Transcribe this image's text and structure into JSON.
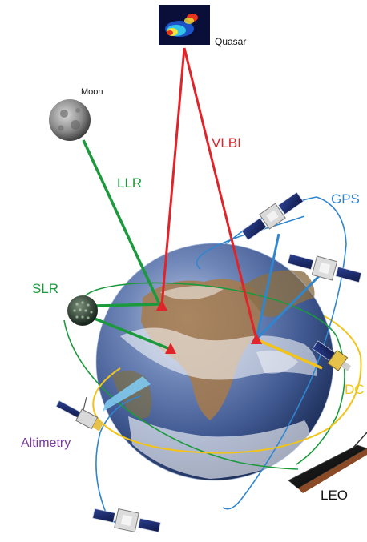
{
  "labels": {
    "quasar": "Quasar",
    "moon": "Moon",
    "vlbi": "VLBI",
    "llr": "LLR",
    "gps": "GPS",
    "slr": "SLR",
    "doris": "DC",
    "altimetry": "Altimetry",
    "leo": "LEO"
  },
  "colors": {
    "vlbi": "#e0242a",
    "llr_slr": "#1a9a3c",
    "gps": "#2f86d0",
    "doris": "#f2c318",
    "altimetry": "#7a3aa0",
    "leo_text": "#111111",
    "altimetry_beam": "#7ec9f0"
  },
  "icons": {
    "quasar": "quasar-radio-image-icon",
    "moon": "moon-icon",
    "earth": "earth-globe",
    "slr_satellite": "laser-reflector-satellite-icon",
    "gps_satellite": "gps-satellite-icon",
    "doris_satellite": "doris-satellite-icon",
    "altimetry_satellite": "altimetry-satellite-icon",
    "leo_satellite": "leo-satellite-icon",
    "ground_station": "ground-station-marker-icon"
  }
}
